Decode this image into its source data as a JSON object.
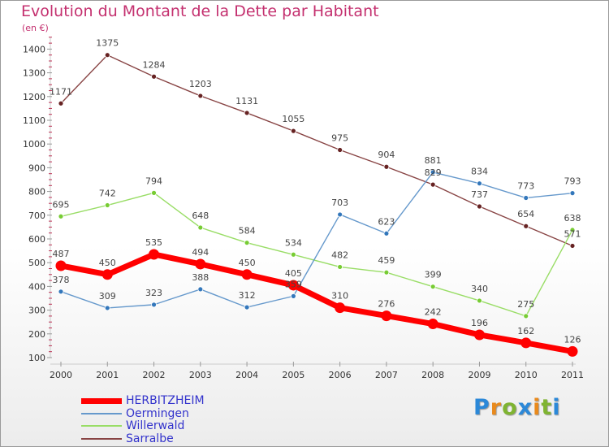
{
  "title": "Evolution du Montant de la Dette par Habitant",
  "subtitle": "(en €)",
  "logo": "Proxiti",
  "chart_data": {
    "type": "line",
    "title": "Evolution du Montant de la Dette par Habitant",
    "ylabel": "(en €)",
    "xlabel": "",
    "x": [
      "2000",
      "2001",
      "2002",
      "2003",
      "2004",
      "2005",
      "2006",
      "2007",
      "2008",
      "2009",
      "2010",
      "2011"
    ],
    "yticks": [
      100,
      200,
      300,
      400,
      500,
      600,
      700,
      800,
      900,
      1000,
      1100,
      1200,
      1300,
      1400
    ],
    "ylim": [
      100,
      1450
    ],
    "grid": false,
    "legend_position": "bottom-left",
    "series": [
      {
        "name": "HERBITZHEIM",
        "color": "#ff0000",
        "values": [
          487,
          450,
          535,
          494,
          450,
          405,
          310,
          276,
          242,
          196,
          162,
          126
        ]
      },
      {
        "name": "Oermingen",
        "color": "#6699cc",
        "values": [
          378,
          309,
          323,
          388,
          312,
          359,
          703,
          623,
          881,
          834,
          773,
          793
        ]
      },
      {
        "name": "Willerwald",
        "color": "#99dd66",
        "values": [
          695,
          742,
          794,
          648,
          584,
          534,
          482,
          459,
          399,
          340,
          275,
          638
        ]
      },
      {
        "name": "Sarralbe",
        "color": "#884444",
        "values": [
          1171,
          1375,
          1284,
          1203,
          1131,
          1055,
          975,
          904,
          829,
          737,
          654,
          571
        ]
      }
    ]
  }
}
